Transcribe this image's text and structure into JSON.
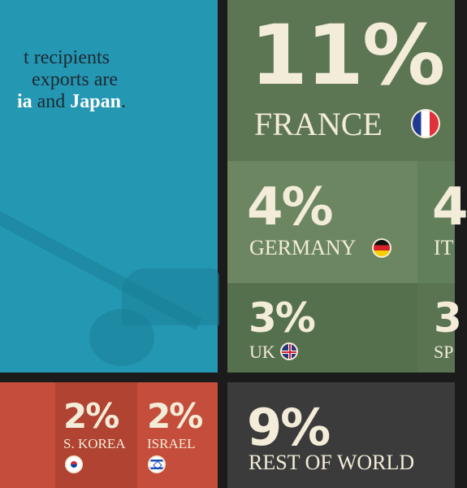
{
  "note": {
    "line1": "t recipients",
    "line2": "exports are",
    "line3_prefix": "ia",
    "line3_and": " and ",
    "line3_japan": "Japan",
    "line3_end": "."
  },
  "colors": {
    "teal": "#2497b3",
    "green_dark": "#5c7653",
    "green_mid": "#5a7351",
    "green_light": "#6b8661",
    "red": "#c44e3b",
    "red_dark": "#b04332",
    "charcoal": "#3b3b3b"
  },
  "chart_data": {
    "type": "treemap",
    "items": [
      {
        "label": "FRANCE",
        "value": 11,
        "value_label": "11%",
        "flag": "france-flag-icon"
      },
      {
        "label": "GERMANY",
        "value": 4,
        "value_label": "4%",
        "flag": "germany-flag-icon"
      },
      {
        "label": "IT",
        "value": 4,
        "value_label": "4",
        "flag": ""
      },
      {
        "label": "UK",
        "value": 3,
        "value_label": "3%",
        "flag": "uk-flag-icon"
      },
      {
        "label": "SP",
        "value": 3,
        "value_label": "3",
        "flag": ""
      },
      {
        "label": "S. KOREA",
        "value": 2,
        "value_label": "2%",
        "flag": "south-korea-flag-icon"
      },
      {
        "label": "ISRAEL",
        "value": 2,
        "value_label": "2%",
        "flag": "israel-flag-icon"
      },
      {
        "label": "REST OF WORLD",
        "value": 9,
        "value_label": "9%",
        "flag": ""
      }
    ]
  }
}
